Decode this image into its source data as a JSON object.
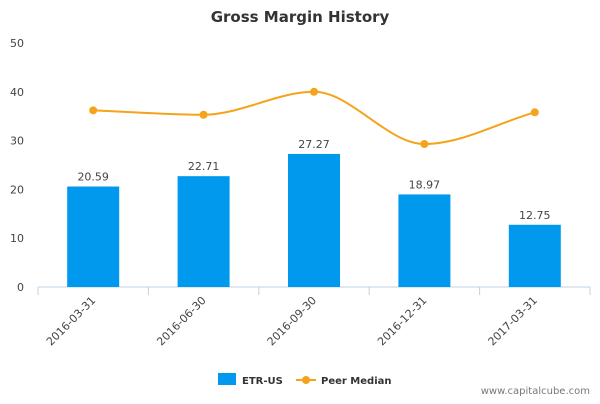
{
  "chart_data": {
    "type": "bar",
    "title": "Gross Margin History",
    "xlabel": "",
    "ylabel": "",
    "ylim": [
      0,
      50
    ],
    "yticks": [
      0,
      10,
      20,
      30,
      40,
      50
    ],
    "categories": [
      "2016-03-31",
      "2016-06-30",
      "2016-09-30",
      "2016-12-31",
      "2017-03-31"
    ],
    "series": [
      {
        "name": "ETR-US",
        "type": "bar",
        "color": "#0099ee",
        "values": [
          20.59,
          22.71,
          27.27,
          18.97,
          12.75
        ],
        "data_labels": [
          "20.59",
          "22.71",
          "27.27",
          "18.97",
          "12.75"
        ]
      },
      {
        "name": "Peer Median",
        "type": "line",
        "color": "#f5a31a",
        "values": [
          36.2,
          35.3,
          40.0,
          29.3,
          35.8
        ]
      }
    ],
    "legend": "bottom-center",
    "grid": false
  },
  "watermark": "www.capitalcube.com"
}
